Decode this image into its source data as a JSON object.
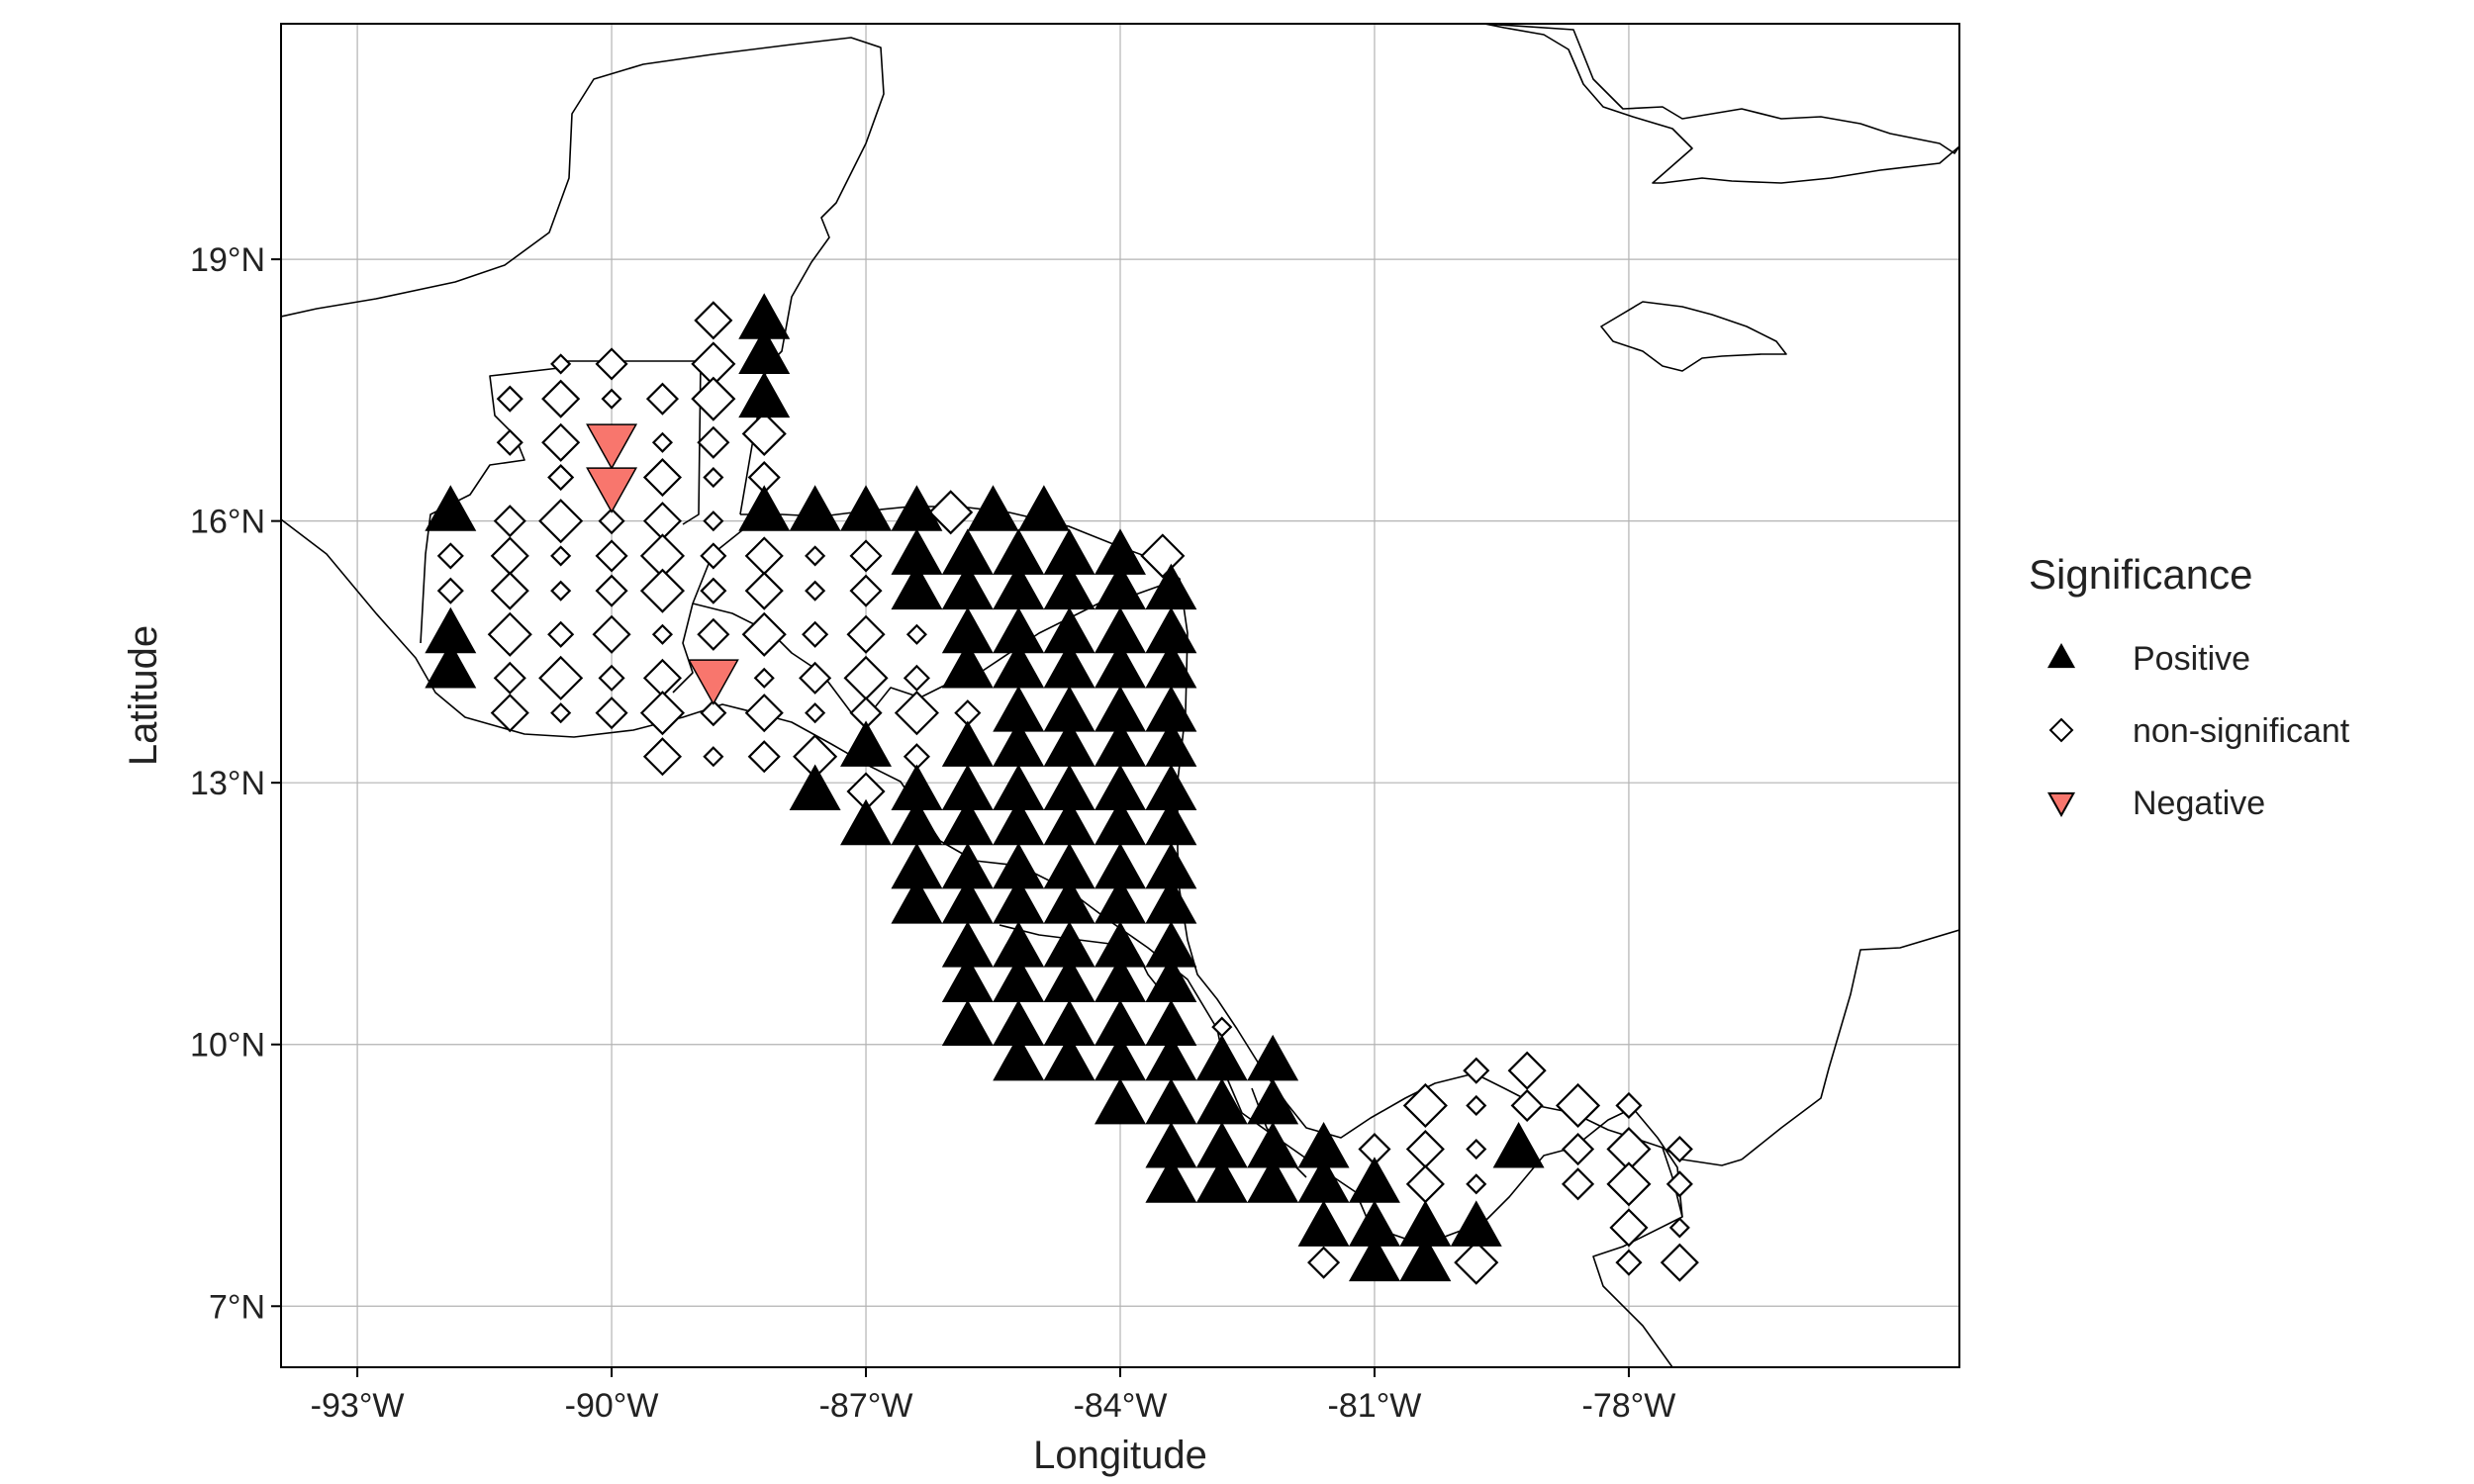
{
  "chart_data": {
    "type": "scatter",
    "title": "",
    "xlabel": "Longitude",
    "ylabel": "Latitude",
    "xlim": [
      -93.9,
      -74.1
    ],
    "ylim": [
      6.3,
      21.7
    ],
    "x_ticks": [
      {
        "value": -93,
        "label": "-93°W"
      },
      {
        "value": -90,
        "label": "-90°W"
      },
      {
        "value": -87,
        "label": "-87°W"
      },
      {
        "value": -84,
        "label": "-84°W"
      },
      {
        "value": -81,
        "label": "-81°W"
      },
      {
        "value": -78,
        "label": "-78°W"
      }
    ],
    "y_ticks": [
      {
        "value": 7,
        "label": "7°N"
      },
      {
        "value": 10,
        "label": "10°N"
      },
      {
        "value": 13,
        "label": "13°N"
      },
      {
        "value": 16,
        "label": "16°N"
      },
      {
        "value": 19,
        "label": "19°N"
      }
    ],
    "grid": true,
    "legend": {
      "title": "Significance",
      "position": "right",
      "entries": [
        {
          "key": "positive",
          "label": "Positive",
          "shape": "triangle-up",
          "fill": "#000000"
        },
        {
          "key": "nonsig",
          "label": "non-significant",
          "shape": "diamond-open",
          "fill": "#ffffff"
        },
        {
          "key": "negative",
          "label": "Negative",
          "shape": "triangle-down",
          "fill": "#f8766d"
        }
      ]
    },
    "series": [
      {
        "name": "Positive",
        "points": [
          [
            -88.2,
            18.3
          ],
          [
            -88.2,
            17.9
          ],
          [
            -88.2,
            17.4
          ],
          [
            -88.2,
            16.1
          ],
          [
            -87.6,
            16.1
          ],
          [
            -87.0,
            16.1
          ],
          [
            -86.4,
            16.1
          ],
          [
            -85.5,
            16.1
          ],
          [
            -84.9,
            16.1
          ],
          [
            -91.9,
            16.1
          ],
          [
            -91.9,
            14.7
          ],
          [
            -91.9,
            14.3
          ],
          [
            -86.4,
            15.6
          ],
          [
            -86.4,
            15.2
          ],
          [
            -85.8,
            15.6
          ],
          [
            -85.8,
            15.2
          ],
          [
            -85.2,
            15.6
          ],
          [
            -85.2,
            15.2
          ],
          [
            -84.6,
            15.6
          ],
          [
            -84.6,
            15.2
          ],
          [
            -84.0,
            15.6
          ],
          [
            -84.0,
            15.2
          ],
          [
            -83.4,
            15.2
          ],
          [
            -83.4,
            14.7
          ],
          [
            -85.8,
            14.7
          ],
          [
            -85.8,
            14.3
          ],
          [
            -85.2,
            14.7
          ],
          [
            -85.2,
            14.3
          ],
          [
            -84.6,
            14.7
          ],
          [
            -84.6,
            14.3
          ],
          [
            -84.0,
            14.7
          ],
          [
            -84.0,
            14.3
          ],
          [
            -83.4,
            14.3
          ],
          [
            -85.2,
            13.8
          ],
          [
            -84.6,
            13.8
          ],
          [
            -84.0,
            13.8
          ],
          [
            -83.4,
            13.8
          ],
          [
            -85.8,
            13.4
          ],
          [
            -85.2,
            13.4
          ],
          [
            -84.6,
            13.4
          ],
          [
            -84.0,
            13.4
          ],
          [
            -83.4,
            13.4
          ],
          [
            -87.0,
            13.4
          ],
          [
            -87.6,
            12.9
          ],
          [
            -87.0,
            12.5
          ],
          [
            -86.4,
            12.9
          ],
          [
            -85.8,
            12.9
          ],
          [
            -85.2,
            12.9
          ],
          [
            -84.6,
            12.9
          ],
          [
            -84.0,
            12.9
          ],
          [
            -83.4,
            12.9
          ],
          [
            -86.4,
            12.5
          ],
          [
            -85.8,
            12.5
          ],
          [
            -85.2,
            12.5
          ],
          [
            -84.6,
            12.5
          ],
          [
            -84.0,
            12.5
          ],
          [
            -83.4,
            12.5
          ],
          [
            -86.4,
            12.0
          ],
          [
            -85.8,
            12.0
          ],
          [
            -85.2,
            12.0
          ],
          [
            -84.6,
            12.0
          ],
          [
            -84.0,
            12.0
          ],
          [
            -83.4,
            12.0
          ],
          [
            -86.4,
            11.6
          ],
          [
            -85.8,
            11.6
          ],
          [
            -85.2,
            11.6
          ],
          [
            -84.6,
            11.6
          ],
          [
            -84.0,
            11.6
          ],
          [
            -83.4,
            11.6
          ],
          [
            -85.8,
            11.1
          ],
          [
            -85.2,
            11.1
          ],
          [
            -84.6,
            11.1
          ],
          [
            -84.0,
            11.1
          ],
          [
            -83.4,
            11.1
          ],
          [
            -85.8,
            10.7
          ],
          [
            -85.2,
            10.7
          ],
          [
            -84.6,
            10.7
          ],
          [
            -84.0,
            10.7
          ],
          [
            -83.4,
            10.7
          ],
          [
            -85.8,
            10.2
          ],
          [
            -85.2,
            10.2
          ],
          [
            -84.6,
            10.2
          ],
          [
            -84.0,
            10.2
          ],
          [
            -83.4,
            10.2
          ],
          [
            -85.2,
            9.8
          ],
          [
            -84.6,
            9.8
          ],
          [
            -84.0,
            9.8
          ],
          [
            -83.4,
            9.8
          ],
          [
            -82.8,
            9.8
          ],
          [
            -82.2,
            9.8
          ],
          [
            -84.0,
            9.3
          ],
          [
            -83.4,
            9.3
          ],
          [
            -82.8,
            9.3
          ],
          [
            -82.2,
            9.3
          ],
          [
            -83.4,
            8.8
          ],
          [
            -82.8,
            8.8
          ],
          [
            -82.2,
            8.8
          ],
          [
            -81.6,
            8.8
          ],
          [
            -79.3,
            8.8
          ],
          [
            -83.4,
            8.4
          ],
          [
            -82.8,
            8.4
          ],
          [
            -82.2,
            8.4
          ],
          [
            -81.6,
            8.4
          ],
          [
            -81.0,
            8.4
          ],
          [
            -81.6,
            7.9
          ],
          [
            -81.0,
            7.9
          ],
          [
            -80.4,
            7.9
          ],
          [
            -79.8,
            7.9
          ],
          [
            -81.0,
            7.5
          ],
          [
            -80.4,
            7.5
          ]
        ]
      },
      {
        "name": "non-significant",
        "points": [
          [
            -88.8,
            18.3
          ],
          [
            -90.6,
            17.8
          ],
          [
            -90.0,
            17.8
          ],
          [
            -88.8,
            17.8
          ],
          [
            -91.2,
            17.4
          ],
          [
            -90.6,
            17.4
          ],
          [
            -90.0,
            17.4
          ],
          [
            -89.4,
            17.4
          ],
          [
            -88.2,
            17.0
          ],
          [
            -91.2,
            16.9
          ],
          [
            -90.6,
            16.9
          ],
          [
            -89.4,
            16.9
          ],
          [
            -88.8,
            16.9
          ],
          [
            -88.8,
            17.4
          ],
          [
            -90.6,
            16.5
          ],
          [
            -89.4,
            16.5
          ],
          [
            -88.8,
            16.5
          ],
          [
            -88.2,
            16.5
          ],
          [
            -90.6,
            16.0
          ],
          [
            -90.0,
            16.0
          ],
          [
            -89.4,
            16.0
          ],
          [
            -88.8,
            16.0
          ],
          [
            -91.2,
            16.0
          ],
          [
            -86.0,
            16.1
          ],
          [
            -91.9,
            15.6
          ],
          [
            -91.2,
            15.6
          ],
          [
            -90.6,
            15.6
          ],
          [
            -90.0,
            15.6
          ],
          [
            -89.4,
            15.6
          ],
          [
            -88.8,
            15.6
          ],
          [
            -88.2,
            15.6
          ],
          [
            -87.6,
            15.6
          ],
          [
            -87.0,
            15.6
          ],
          [
            -83.5,
            15.6
          ],
          [
            -91.9,
            15.2
          ],
          [
            -91.2,
            15.2
          ],
          [
            -90.6,
            15.2
          ],
          [
            -90.0,
            15.2
          ],
          [
            -89.4,
            15.2
          ],
          [
            -88.8,
            15.2
          ],
          [
            -88.2,
            15.2
          ],
          [
            -87.6,
            15.2
          ],
          [
            -87.0,
            15.2
          ],
          [
            -91.2,
            14.7
          ],
          [
            -90.6,
            14.7
          ],
          [
            -90.0,
            14.7
          ],
          [
            -89.4,
            14.7
          ],
          [
            -88.8,
            14.7
          ],
          [
            -88.2,
            14.7
          ],
          [
            -87.6,
            14.7
          ],
          [
            -87.0,
            14.7
          ],
          [
            -86.4,
            14.7
          ],
          [
            -91.2,
            14.2
          ],
          [
            -90.6,
            14.2
          ],
          [
            -90.0,
            14.2
          ],
          [
            -89.4,
            14.2
          ],
          [
            -88.2,
            14.2
          ],
          [
            -87.6,
            14.2
          ],
          [
            -87.0,
            14.2
          ],
          [
            -86.4,
            14.2
          ],
          [
            -91.2,
            13.8
          ],
          [
            -90.6,
            13.8
          ],
          [
            -90.0,
            13.8
          ],
          [
            -89.4,
            13.8
          ],
          [
            -88.8,
            13.8
          ],
          [
            -88.2,
            13.8
          ],
          [
            -87.6,
            13.8
          ],
          [
            -87.0,
            13.8
          ],
          [
            -86.4,
            13.8
          ],
          [
            -85.8,
            13.8
          ],
          [
            -89.4,
            13.3
          ],
          [
            -88.8,
            13.3
          ],
          [
            -88.2,
            13.3
          ],
          [
            -87.6,
            13.3
          ],
          [
            -86.4,
            13.3
          ],
          [
            -87.0,
            12.9
          ],
          [
            -82.8,
            10.2
          ],
          [
            -81.0,
            8.8
          ],
          [
            -80.4,
            9.3
          ],
          [
            -79.8,
            9.7
          ],
          [
            -79.2,
            9.7
          ],
          [
            -79.8,
            9.3
          ],
          [
            -79.2,
            9.3
          ],
          [
            -78.6,
            9.3
          ],
          [
            -78.0,
            9.3
          ],
          [
            -80.4,
            8.8
          ],
          [
            -79.8,
            8.8
          ],
          [
            -78.6,
            8.8
          ],
          [
            -78.0,
            8.8
          ],
          [
            -77.4,
            8.8
          ],
          [
            -80.4,
            8.4
          ],
          [
            -79.8,
            8.4
          ],
          [
            -78.6,
            8.4
          ],
          [
            -78.0,
            8.4
          ],
          [
            -77.4,
            8.4
          ],
          [
            -78.0,
            7.9
          ],
          [
            -77.4,
            7.9
          ],
          [
            -81.6,
            7.5
          ],
          [
            -79.8,
            7.5
          ],
          [
            -78.0,
            7.5
          ],
          [
            -77.4,
            7.5
          ]
        ]
      },
      {
        "name": "Negative",
        "points": [
          [
            -90.0,
            16.9
          ],
          [
            -90.0,
            16.4
          ],
          [
            -88.8,
            14.2
          ]
        ]
      }
    ]
  }
}
